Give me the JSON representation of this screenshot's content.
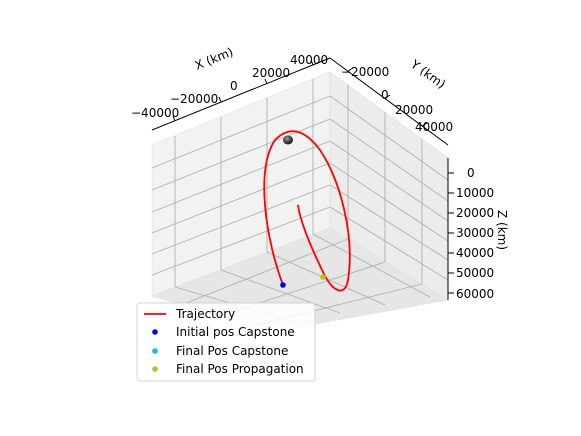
{
  "chart_data": {
    "type": "line",
    "projection": "3d",
    "axes": {
      "x": {
        "label": "X (km)",
        "ticks": [
          -40000,
          -20000,
          0,
          20000,
          40000
        ],
        "tick_labels": [
          "−40000",
          "−20000",
          "0",
          "20000",
          "40000"
        ]
      },
      "y": {
        "label": "Y (km)",
        "ticks": [
          -20000,
          0,
          20000,
          40000
        ],
        "tick_labels": [
          "−20000",
          "0",
          "20000",
          "40000"
        ]
      },
      "z": {
        "label": "Z (km)",
        "ticks": [
          0,
          10000,
          20000,
          30000,
          40000,
          50000,
          60000
        ],
        "tick_labels": [
          "0",
          "10000",
          "20000",
          "30000",
          "40000",
          "50000",
          "60000"
        ]
      }
    },
    "grid": true,
    "legend_position": "bottom-left",
    "series": [
      {
        "name": "Trajectory",
        "kind": "line",
        "color": "#ff0000"
      },
      {
        "name": "Initial pos Capstone",
        "kind": "point",
        "color": "#0000ff"
      },
      {
        "name": "Final Pos Capstone",
        "kind": "point",
        "color": "#17becf"
      },
      {
        "name": "Final Pos Propagation",
        "kind": "point",
        "color": "#bcbd22"
      }
    ],
    "central_body": {
      "icon": "moon-sphere-icon",
      "color": "#333333"
    }
  }
}
